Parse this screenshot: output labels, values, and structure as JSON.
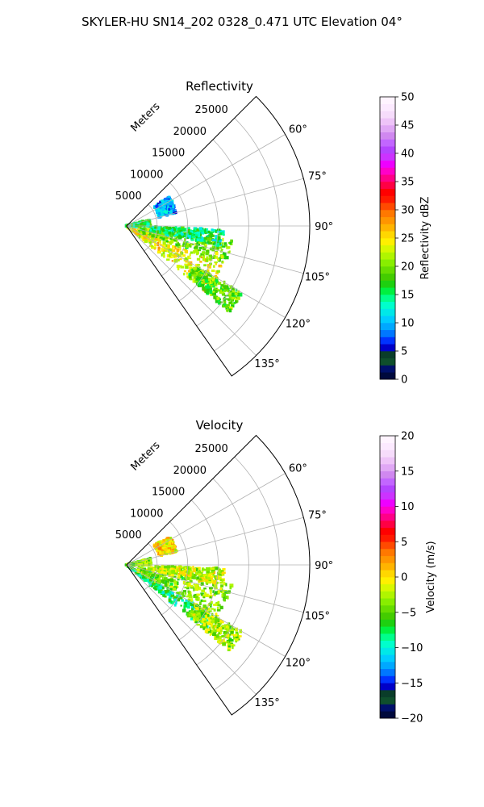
{
  "figure": {
    "title": "SKYLER-HU  SN14_202  0328_0.471 UTC Elevation 04°"
  },
  "chart_data": [
    {
      "type": "heatmap",
      "subtype": "polar-sector",
      "title": "Reflectivity",
      "range_label": "Meters",
      "azimuth_range_deg": [
        45,
        145
      ],
      "max_range_m": 30000,
      "range_ticks": [
        5000,
        10000,
        15000,
        20000,
        25000
      ],
      "range_tick_labels": [
        "5000",
        "10000",
        "15000",
        "20000",
        "25000"
      ],
      "azimuth_ticks": [
        60,
        75,
        90,
        105,
        120,
        135
      ],
      "azimuth_tick_labels": [
        "60°",
        "75°",
        "90°",
        "105°",
        "120°",
        "135°"
      ],
      "grid": true,
      "colorbar": {
        "label": "Reflectivity dBZ",
        "range": [
          0,
          50
        ],
        "ticks": [
          0,
          5,
          10,
          15,
          20,
          25,
          30,
          35,
          40,
          45,
          50
        ],
        "tick_labels": [
          "0",
          "5",
          "10",
          "15",
          "20",
          "25",
          "30",
          "35",
          "40",
          "45",
          "50"
        ],
        "colors": [
          "#00093d",
          "#00106a",
          "#0f4f2c",
          "#0a3d2a",
          "#0000c8",
          "#0033ff",
          "#0077ff",
          "#00a8ff",
          "#00ccff",
          "#00e8e8",
          "#00ffcc",
          "#00ff8c",
          "#00f040",
          "#1ed010",
          "#44cc00",
          "#66dd00",
          "#88ee00",
          "#b0f500",
          "#d8f800",
          "#fff000",
          "#ffd700",
          "#ffb400",
          "#ff9500",
          "#ff7800",
          "#ff4a00",
          "#ff1a00",
          "#ff0000",
          "#ff0044",
          "#ff0088",
          "#ff00c8",
          "#ee00ff",
          "#cc33ff",
          "#b444ff",
          "#c266ff",
          "#d088f0",
          "#e0a8f5",
          "#eec4f8",
          "#f6dcfb",
          "#fceaff",
          "#fff4ff"
        ]
      },
      "echo_regions": [
        {
          "az": [
            112,
            130
          ],
          "range_m": [
            0,
            17000
          ],
          "value": 24
        },
        {
          "az": [
            98,
            112
          ],
          "range_m": [
            2000,
            17500
          ],
          "value": 20
        },
        {
          "az": [
            92,
            102
          ],
          "range_m": [
            4000,
            16000
          ],
          "value": 15
        },
        {
          "az": [
            120,
            130
          ],
          "range_m": [
            13000,
            22000
          ],
          "value": 19
        },
        {
          "az": [
            55,
            75
          ],
          "range_m": [
            5500,
            8500
          ],
          "value": 10
        },
        {
          "az": [
            75,
            90
          ],
          "range_m": [
            0,
            4000
          ],
          "value": 16
        }
      ]
    },
    {
      "type": "heatmap",
      "subtype": "polar-sector",
      "title": "Velocity",
      "range_label": "Meters",
      "azimuth_range_deg": [
        45,
        145
      ],
      "max_range_m": 30000,
      "range_ticks": [
        5000,
        10000,
        15000,
        20000,
        25000
      ],
      "range_tick_labels": [
        "5000",
        "10000",
        "15000",
        "20000",
        "25000"
      ],
      "azimuth_ticks": [
        60,
        75,
        90,
        105,
        120,
        135
      ],
      "azimuth_tick_labels": [
        "60°",
        "75°",
        "90°",
        "105°",
        "120°",
        "135°"
      ],
      "grid": true,
      "colorbar": {
        "label": "Velocity (m/s)",
        "range": [
          -20,
          20
        ],
        "ticks": [
          -20,
          -15,
          -10,
          -5,
          0,
          5,
          10,
          15,
          20
        ],
        "tick_labels": [
          "−20",
          "−15",
          "−10",
          "−5",
          "0",
          "5",
          "10",
          "15",
          "20"
        ],
        "colors": [
          "#00093d",
          "#00106a",
          "#0f4f2c",
          "#0a3d2a",
          "#0000c8",
          "#0033ff",
          "#0077ff",
          "#00a8ff",
          "#00ccff",
          "#00e8e8",
          "#00ffcc",
          "#00ff8c",
          "#00f040",
          "#1ed010",
          "#44cc00",
          "#66dd00",
          "#88ee00",
          "#b0f500",
          "#d8f800",
          "#fff000",
          "#ffd700",
          "#ffb400",
          "#ff9500",
          "#ff7800",
          "#ff4a00",
          "#ff1a00",
          "#ff0000",
          "#ff0044",
          "#ff0088",
          "#ff00c8",
          "#ee00ff",
          "#cc33ff",
          "#b444ff",
          "#c266ff",
          "#d088f0",
          "#e0a8f5",
          "#eec4f8",
          "#f6dcfb",
          "#fceaff",
          "#fff4ff"
        ]
      },
      "echo_regions": [
        {
          "az": [
            120,
            130
          ],
          "range_m": [
            0,
            17000
          ],
          "value": -8
        },
        {
          "az": [
            100,
            120
          ],
          "range_m": [
            2000,
            17500
          ],
          "value": -4
        },
        {
          "az": [
            92,
            102
          ],
          "range_m": [
            4000,
            16000
          ],
          "value": -2
        },
        {
          "az": [
            120,
            130
          ],
          "range_m": [
            13000,
            22000
          ],
          "value": -3
        },
        {
          "az": [
            55,
            75
          ],
          "range_m": [
            5500,
            8500
          ],
          "value": 0
        },
        {
          "az": [
            75,
            90
          ],
          "range_m": [
            0,
            4000
          ],
          "value": -4
        }
      ]
    }
  ]
}
